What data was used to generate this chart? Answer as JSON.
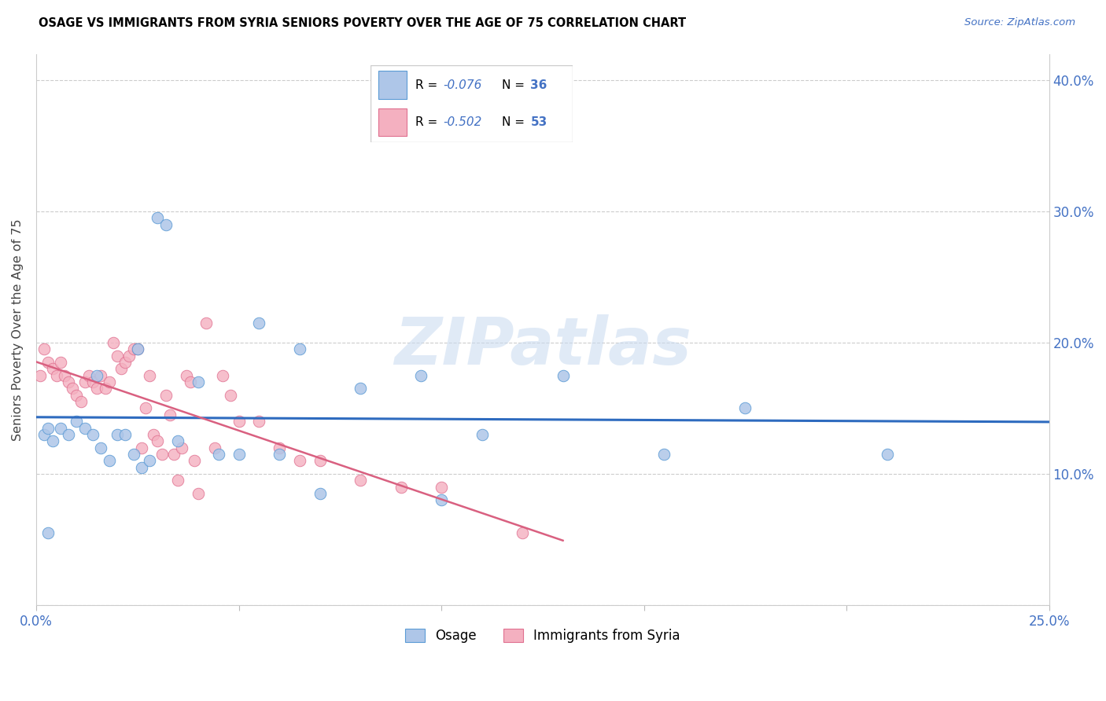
{
  "title": "OSAGE VS IMMIGRANTS FROM SYRIA SENIORS POVERTY OVER THE AGE OF 75 CORRELATION CHART",
  "source": "Source: ZipAtlas.com",
  "ylabel": "Seniors Poverty Over the Age of 75",
  "xlim": [
    0.0,
    0.25
  ],
  "ylim": [
    0.0,
    0.42
  ],
  "xticks": [
    0.0,
    0.05,
    0.1,
    0.15,
    0.2,
    0.25
  ],
  "yticks": [
    0.0,
    0.1,
    0.2,
    0.3,
    0.4
  ],
  "osage_R": -0.076,
  "osage_N": 36,
  "syria_R": -0.502,
  "syria_N": 53,
  "osage_color": "#aec6e8",
  "osage_edge": "#5b9bd5",
  "syria_color": "#f4b0c0",
  "syria_edge": "#e07090",
  "osage_line_color": "#2e6bbf",
  "syria_line_color": "#d96080",
  "axis_label_color": "#4472c4",
  "watermark_color": "#c8daf0",
  "osage_x": [
    0.015,
    0.025,
    0.03,
    0.032,
    0.055,
    0.065,
    0.002,
    0.004,
    0.04,
    0.08,
    0.095,
    0.11,
    0.13,
    0.175,
    0.21,
    0.003,
    0.006,
    0.008,
    0.01,
    0.012,
    0.014,
    0.016,
    0.018,
    0.02,
    0.022,
    0.024,
    0.026,
    0.028,
    0.035,
    0.045,
    0.05,
    0.06,
    0.07,
    0.1,
    0.155,
    0.003
  ],
  "osage_y": [
    0.175,
    0.195,
    0.295,
    0.29,
    0.215,
    0.195,
    0.13,
    0.125,
    0.17,
    0.165,
    0.175,
    0.13,
    0.175,
    0.15,
    0.115,
    0.135,
    0.135,
    0.13,
    0.14,
    0.135,
    0.13,
    0.12,
    0.11,
    0.13,
    0.13,
    0.115,
    0.105,
    0.11,
    0.125,
    0.115,
    0.115,
    0.115,
    0.085,
    0.08,
    0.115,
    0.055
  ],
  "syria_x": [
    0.001,
    0.002,
    0.003,
    0.004,
    0.005,
    0.006,
    0.007,
    0.008,
    0.009,
    0.01,
    0.011,
    0.012,
    0.013,
    0.014,
    0.015,
    0.016,
    0.017,
    0.018,
    0.019,
    0.02,
    0.021,
    0.022,
    0.023,
    0.024,
    0.025,
    0.026,
    0.027,
    0.028,
    0.029,
    0.03,
    0.031,
    0.032,
    0.033,
    0.034,
    0.035,
    0.036,
    0.037,
    0.038,
    0.039,
    0.04,
    0.042,
    0.044,
    0.046,
    0.048,
    0.05,
    0.055,
    0.06,
    0.065,
    0.07,
    0.08,
    0.09,
    0.1,
    0.12
  ],
  "syria_y": [
    0.175,
    0.195,
    0.185,
    0.18,
    0.175,
    0.185,
    0.175,
    0.17,
    0.165,
    0.16,
    0.155,
    0.17,
    0.175,
    0.17,
    0.165,
    0.175,
    0.165,
    0.17,
    0.2,
    0.19,
    0.18,
    0.185,
    0.19,
    0.195,
    0.195,
    0.12,
    0.15,
    0.175,
    0.13,
    0.125,
    0.115,
    0.16,
    0.145,
    0.115,
    0.095,
    0.12,
    0.175,
    0.17,
    0.11,
    0.085,
    0.215,
    0.12,
    0.175,
    0.16,
    0.14,
    0.14,
    0.12,
    0.11,
    0.11,
    0.095,
    0.09,
    0.09,
    0.055
  ]
}
